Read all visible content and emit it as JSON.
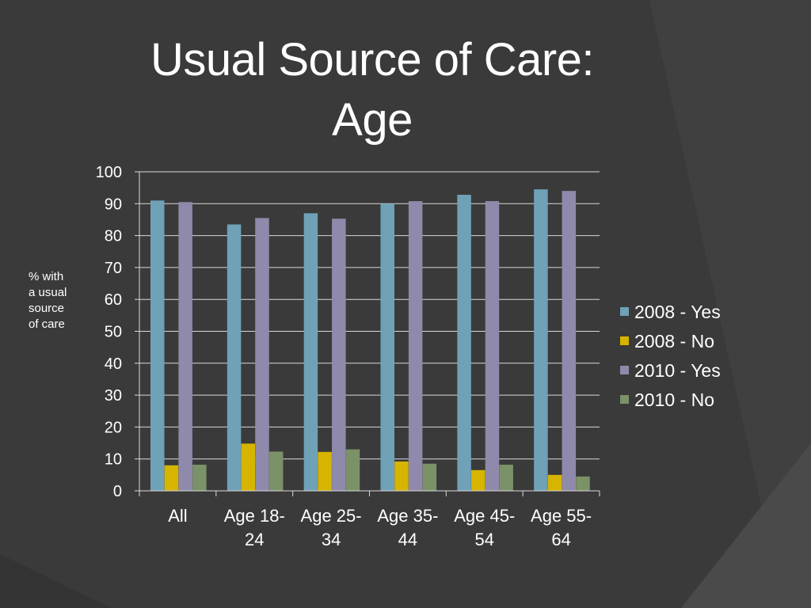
{
  "slide": {
    "title_lines": [
      "Usual Source of Care:",
      "Age"
    ],
    "ylabel_lines": [
      "% with",
      "a usual",
      "source",
      "of care"
    ]
  },
  "colors": {
    "background": "#3a3a3a",
    "background_light": "#4a4a4a",
    "gridline": "#d9d9d9",
    "text": "#ffffff"
  },
  "chart_data": {
    "type": "bar",
    "title": "Usual Source of Care: Age",
    "ylabel": "% with a usual source of care",
    "xlabel": "",
    "ylim": [
      0,
      100
    ],
    "yticks": [
      0,
      10,
      20,
      30,
      40,
      50,
      60,
      70,
      80,
      90,
      100
    ],
    "grid": true,
    "legend_position": "right",
    "categories": [
      "All",
      "Age 18-24",
      "Age 25-34",
      "Age 35-44",
      "Age 45-54",
      "Age 55-64"
    ],
    "category_label_lines": [
      [
        "All"
      ],
      [
        "Age 18-",
        "24"
      ],
      [
        "Age 25-",
        "34"
      ],
      [
        "Age 35-",
        "44"
      ],
      [
        "Age 45-",
        "54"
      ],
      [
        "Age 55-",
        "64"
      ]
    ],
    "series": [
      {
        "name": "2008 - Yes",
        "color": "#6fa1b7",
        "values": [
          91,
          83.5,
          87,
          90,
          92.8,
          94.5
        ]
      },
      {
        "name": "2008 - No",
        "color": "#d6b400",
        "values": [
          8,
          14.8,
          12.2,
          9.2,
          6.5,
          5
        ]
      },
      {
        "name": "2010 - Yes",
        "color": "#8f8aab",
        "values": [
          90.5,
          85.5,
          85.3,
          90.8,
          90.8,
          94
        ]
      },
      {
        "name": "2010 - No",
        "color": "#7b9168",
        "values": [
          8.2,
          12.3,
          13,
          8.5,
          8.2,
          4.5
        ]
      }
    ]
  }
}
